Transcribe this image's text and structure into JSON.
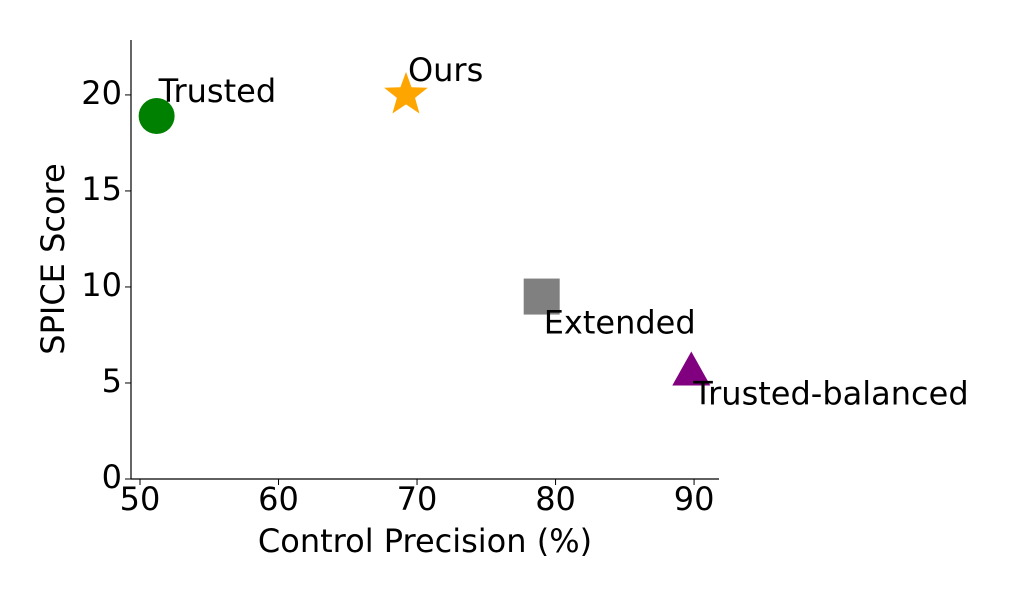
{
  "chart_data": {
    "type": "scatter",
    "xlabel": "Control Precision (%)",
    "ylabel": "SPICE Score",
    "xlim": [
      49.35,
      91.8
    ],
    "ylim": [
      0,
      22.86
    ],
    "xticks": [
      50,
      60,
      70,
      80,
      90
    ],
    "yticks": [
      0,
      5,
      10,
      15,
      20
    ],
    "series": [
      {
        "name": "Trusted",
        "color": "#008000",
        "marker": "circle",
        "x": [
          51.2
        ],
        "values": [
          18.9
        ]
      },
      {
        "name": "Ours",
        "color": "#ffa500",
        "marker": "star",
        "x": [
          69.2
        ],
        "values": [
          20.0
        ]
      },
      {
        "name": "Extended",
        "color": "#808080",
        "marker": "square",
        "x": [
          79.0
        ],
        "values": [
          9.5
        ]
      },
      {
        "name": "Trusted-balanced",
        "color": "#800080",
        "marker": "triangle",
        "x": [
          89.8
        ],
        "values": [
          5.6
        ]
      }
    ]
  }
}
